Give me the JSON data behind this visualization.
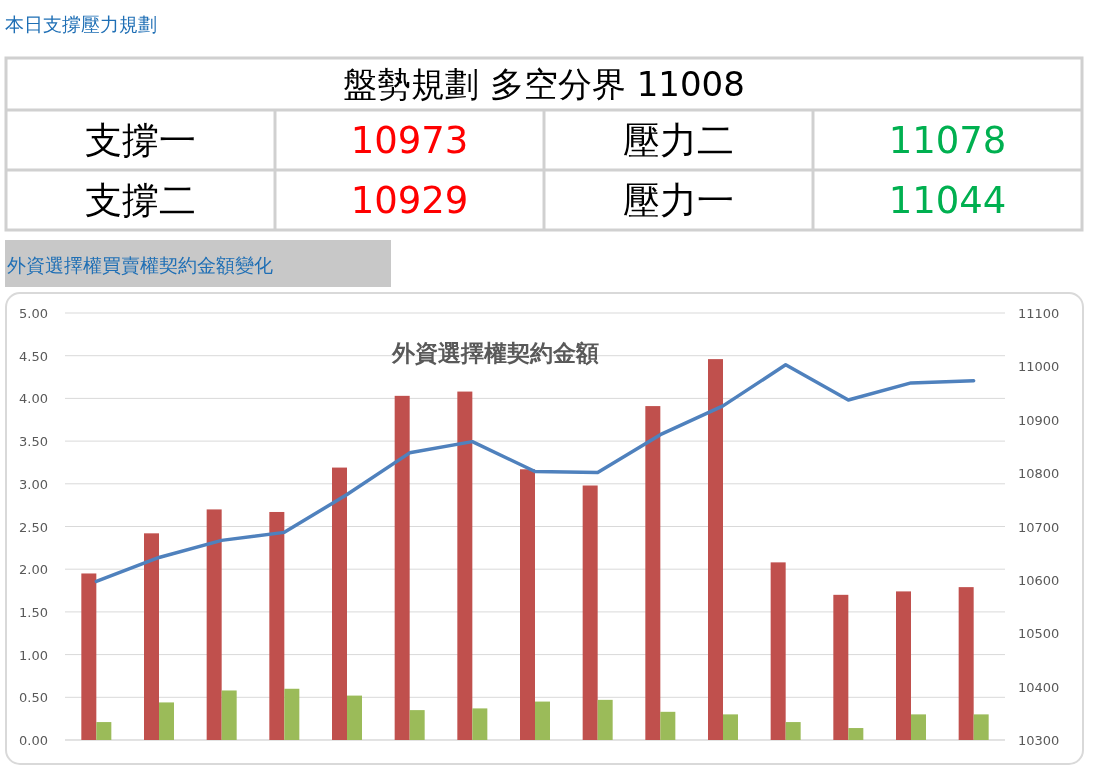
{
  "chart_data": [
    {
      "type": "other",
      "title": "本日支撐壓力規劃",
      "annotations": [
        "盤勢規劃 多空分界 11008",
        "支撐一",
        "10973",
        "壓力二",
        "11078",
        "支撐二",
        "10929",
        "壓力一",
        "11044"
      ],
      "colors": [
        "#000000",
        "#000000",
        "#ff0000",
        "#000000",
        "#00b050",
        "#000000",
        "#ff0000",
        "#000000",
        "#00b050"
      ]
    },
    {
      "type": "bar",
      "subtitle": "外資選擇權買賣權契約金額變化",
      "title": "外資選擇權契約金額",
      "categories": [
        null,
        null,
        null,
        null,
        null,
        null,
        null,
        null,
        null,
        null,
        null,
        null,
        null,
        null,
        null
      ],
      "series": [
        {
          "type": "bar",
          "color": "#c0504d",
          "values": [
            1.95,
            2.42,
            2.7,
            2.67,
            3.19,
            4.03,
            4.08,
            3.17,
            2.98,
            3.91,
            4.46,
            2.08,
            1.7,
            1.74,
            1.79
          ]
        },
        {
          "type": "bar",
          "color": "#9bbb59",
          "values": [
            0.21,
            0.44,
            0.58,
            0.6,
            0.52,
            0.35,
            0.37,
            0.45,
            0.47,
            0.33,
            0.3,
            0.21,
            0.14,
            0.3,
            0.3
          ]
        },
        {
          "type": "line",
          "axis": "y2",
          "color": "#4f81bd",
          "values": [
            10597,
            10642,
            10674,
            10689,
            10760,
            10838,
            10859,
            10803,
            10801,
            10872,
            10926,
            11003,
            10937,
            10969,
            10973
          ]
        }
      ],
      "ylim": [
        0,
        5
      ],
      "yticks": [
        {
          "value": 0,
          "label": "0.00"
        },
        {
          "value": 0.5,
          "label": "0.50"
        },
        {
          "value": 1,
          "label": "1.00"
        },
        {
          "value": 1.5,
          "label": "1.50"
        },
        {
          "value": 2,
          "label": "2.00"
        },
        {
          "value": 2.5,
          "label": "2.50"
        },
        {
          "value": 3,
          "label": "3.00"
        },
        {
          "value": 3.5,
          "label": "3.50"
        },
        {
          "value": 4,
          "label": "4.00"
        },
        {
          "value": 4.5,
          "label": "4.50"
        },
        {
          "value": 5,
          "label": "5.00"
        }
      ],
      "y2lim": [
        10300,
        11100
      ],
      "y2ticks": [
        10300,
        10400,
        10500,
        10600,
        10700,
        10800,
        10900,
        11000,
        11100
      ],
      "grid": "y"
    }
  ]
}
